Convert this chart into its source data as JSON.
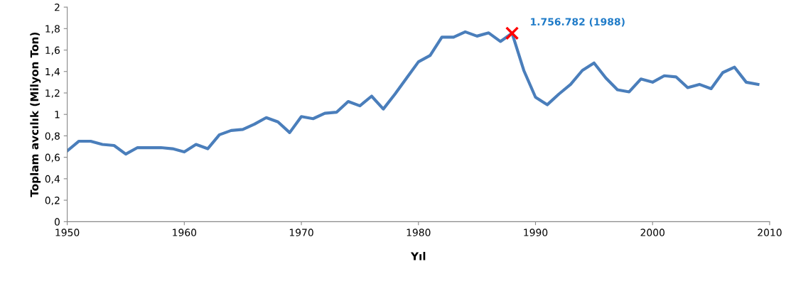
{
  "chart_data": {
    "type": "line",
    "xlabel": "Yıl",
    "ylabel": "Toplam avcılık (Milyon Ton)",
    "x": [
      1950,
      1951,
      1952,
      1953,
      1954,
      1955,
      1956,
      1957,
      1958,
      1959,
      1960,
      1961,
      1962,
      1963,
      1964,
      1965,
      1966,
      1967,
      1968,
      1969,
      1970,
      1971,
      1972,
      1973,
      1974,
      1975,
      1976,
      1977,
      1978,
      1979,
      1980,
      1981,
      1982,
      1983,
      1984,
      1985,
      1986,
      1987,
      1988,
      1989,
      1990,
      1991,
      1992,
      1993,
      1994,
      1995,
      1996,
      1997,
      1998,
      1999,
      2000,
      2001,
      2002,
      2003,
      2004,
      2005,
      2006,
      2007,
      2008,
      2009
    ],
    "series": [
      {
        "color": "#4a7ebb",
        "values": [
          0.66,
          0.75,
          0.75,
          0.72,
          0.71,
          0.63,
          0.69,
          0.69,
          0.69,
          0.68,
          0.65,
          0.72,
          0.68,
          0.81,
          0.85,
          0.86,
          0.91,
          0.97,
          0.93,
          0.83,
          0.98,
          0.96,
          1.01,
          1.02,
          1.12,
          1.08,
          1.17,
          1.05,
          1.19,
          1.34,
          1.49,
          1.55,
          1.72,
          1.72,
          1.77,
          1.73,
          1.76,
          1.68,
          1.757,
          1.41,
          1.16,
          1.09,
          1.19,
          1.28,
          1.41,
          1.48,
          1.34,
          1.23,
          1.21,
          1.33,
          1.3,
          1.36,
          1.35,
          1.25,
          1.28,
          1.24,
          1.39,
          1.44,
          1.3,
          1.28
        ]
      },
      {
        "type": "scatter",
        "marker": "cross",
        "color": "#ff0000",
        "x": [
          1988
        ],
        "values": [
          1.757
        ]
      }
    ],
    "annotations": [
      {
        "text": "1.756.782 (1988)",
        "x": 1988,
        "y": 1.757
      }
    ],
    "xlim": [
      1950,
      2010
    ],
    "xticks": [
      1950,
      1960,
      1970,
      1980,
      1990,
      2000,
      2010
    ],
    "ylim": [
      0,
      2
    ],
    "yticks": [
      0,
      {
        "value": 0.2,
        "label": "0,2"
      },
      {
        "value": 0.4,
        "label": "0,4"
      },
      {
        "value": 0.6,
        "label": "0,6"
      },
      {
        "value": 0.8,
        "label": "0,8"
      },
      1,
      {
        "value": 1.2,
        "label": "1,2"
      },
      {
        "value": 1.4,
        "label": "1,4"
      },
      {
        "value": 1.6,
        "label": "1,6"
      },
      {
        "value": 1.8,
        "label": "1,8"
      },
      2
    ],
    "grid": false,
    "legend": false,
    "marker": "none",
    "line_style": "solid"
  }
}
